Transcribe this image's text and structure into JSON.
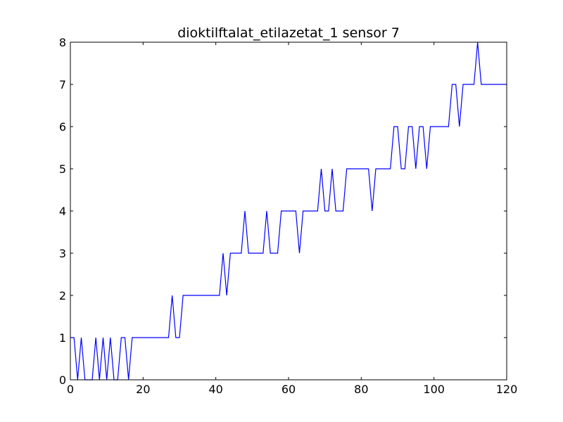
{
  "chart_data": {
    "type": "line",
    "title": "dioktilftalat_etilazetat_1 sensor 7",
    "xlabel": "",
    "ylabel": "",
    "xlim": [
      0,
      120
    ],
    "ylim": [
      0,
      8
    ],
    "xticks": [
      "0",
      "20",
      "40",
      "60",
      "80",
      "100",
      "120"
    ],
    "yticks": [
      "0",
      "1",
      "2",
      "3",
      "4",
      "5",
      "6",
      "7",
      "8"
    ],
    "grid": false,
    "colors": {
      "line": "#0000ff",
      "axes": "#000000",
      "background": "#ffffff"
    },
    "series": [
      {
        "x": [
          0,
          1,
          2,
          3,
          4,
          5,
          6,
          7,
          8,
          9,
          10,
          11,
          12,
          13,
          14,
          15,
          16,
          17,
          18,
          19,
          20,
          21,
          22,
          23,
          24,
          25,
          26,
          27,
          28,
          29,
          30,
          31,
          32,
          33,
          34,
          35,
          36,
          37,
          38,
          39,
          40,
          41,
          42,
          43,
          44,
          45,
          46,
          47,
          48,
          49,
          50,
          51,
          52,
          53,
          54,
          55,
          56,
          57,
          58,
          59,
          60,
          61,
          62,
          63,
          64,
          65,
          66,
          67,
          68,
          69,
          70,
          71,
          72,
          73,
          74,
          75,
          76,
          77,
          78,
          79,
          80,
          81,
          82,
          83,
          84,
          85,
          86,
          87,
          88,
          89,
          90,
          91,
          92,
          93,
          94,
          95,
          96,
          97,
          98,
          99,
          100,
          101,
          102,
          103,
          104,
          105,
          106,
          107,
          108,
          109,
          110,
          111,
          112,
          113,
          114,
          115,
          116,
          117,
          118,
          119,
          120
        ],
        "y": [
          1,
          1,
          0,
          1,
          0,
          0,
          0,
          1,
          0,
          1,
          0,
          1,
          0,
          0,
          1,
          1,
          0,
          1,
          1,
          1,
          1,
          1,
          1,
          1,
          1,
          1,
          1,
          1,
          2,
          1,
          1,
          2,
          2,
          2,
          2,
          2,
          2,
          2,
          2,
          2,
          2,
          2,
          3,
          2,
          3,
          3,
          3,
          3,
          4,
          3,
          3,
          3,
          3,
          3,
          4,
          3,
          3,
          3,
          4,
          4,
          4,
          4,
          4,
          3,
          4,
          4,
          4,
          4,
          4,
          5,
          4,
          4,
          5,
          4,
          4,
          4,
          5,
          5,
          5,
          5,
          5,
          5,
          5,
          4,
          5,
          5,
          5,
          5,
          5,
          6,
          6,
          5,
          5,
          6,
          6,
          5,
          6,
          6,
          5,
          6,
          6,
          6,
          6,
          6,
          6,
          7,
          7,
          6,
          7,
          7,
          7,
          7,
          8,
          7,
          7,
          7,
          7,
          7,
          7,
          7,
          7
        ]
      }
    ]
  }
}
